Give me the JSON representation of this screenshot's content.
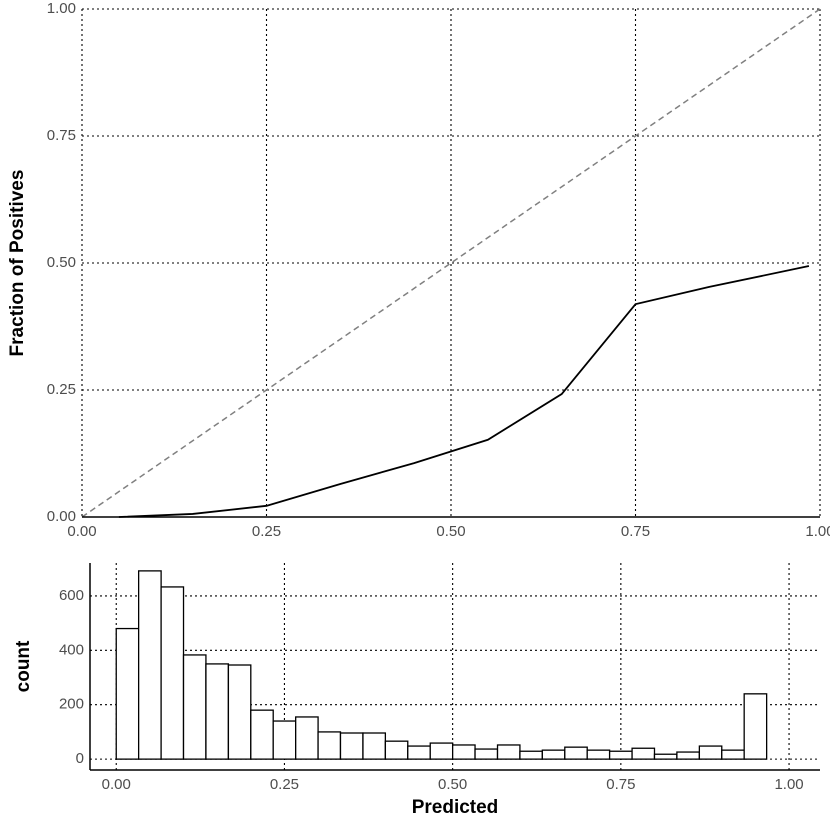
{
  "chart_data": [
    {
      "type": "line",
      "y_label": "Fraction of Positives",
      "x": [
        0.05,
        0.15,
        0.25,
        0.35,
        0.45,
        0.55,
        0.65,
        0.75,
        0.85,
        0.985
      ],
      "values": [
        0,
        0.006,
        0.022,
        0.065,
        0.106,
        0.152,
        0.242,
        0.419,
        0.453,
        0.494
      ],
      "color": "#000000",
      "reference_diagonal": true,
      "xlim": [
        0,
        1
      ],
      "ylim": [
        0,
        1
      ],
      "xticks": [
        {
          "value": 0,
          "label": "0.00"
        },
        {
          "value": 0.25,
          "label": "0.25"
        },
        {
          "value": 0.5,
          "label": "0.50"
        },
        {
          "value": 0.75,
          "label": "0.75"
        },
        {
          "value": 1,
          "label": "1.00"
        }
      ],
      "yticks": [
        {
          "value": 0,
          "label": "0.00"
        },
        {
          "value": 0.25,
          "label": "0.25"
        },
        {
          "value": 0.5,
          "label": "0.50"
        },
        {
          "value": 0.75,
          "label": "0.75"
        },
        {
          "value": 1,
          "label": "1.00"
        }
      ],
      "grid": true
    },
    {
      "type": "histogram",
      "x_label": "Predicted",
      "y_label": "count",
      "bins": [
        0,
        0.0333,
        0.0667,
        0.1,
        0.1333,
        0.1667,
        0.2,
        0.2333,
        0.2667,
        0.3,
        0.3333,
        0.3667,
        0.4,
        0.4333,
        0.4667,
        0.5,
        0.5333,
        0.5667,
        0.6,
        0.6333,
        0.6667,
        0.7,
        0.7333,
        0.7667,
        0.8,
        0.8333,
        0.8667,
        0.9,
        0.9333,
        0.9667
      ],
      "values": [
        480,
        692,
        633,
        383,
        350,
        346,
        180,
        140,
        155,
        100,
        96,
        96,
        66,
        48,
        59,
        52,
        37,
        52,
        29,
        33,
        44,
        33,
        29,
        40,
        18,
        26,
        48,
        33,
        240
      ],
      "color": "#ffffff",
      "xlim": [
        -0.039,
        1.046
      ],
      "ylim": [
        -40,
        721
      ],
      "xticks": [
        {
          "value": 0,
          "label": "0.00"
        },
        {
          "value": 0.25,
          "label": "0.25"
        },
        {
          "value": 0.5,
          "label": "0.50"
        },
        {
          "value": 0.75,
          "label": "0.75"
        },
        {
          "value": 1,
          "label": "1.00"
        }
      ],
      "yticks": [
        0,
        200,
        400,
        600
      ],
      "grid": true
    }
  ]
}
